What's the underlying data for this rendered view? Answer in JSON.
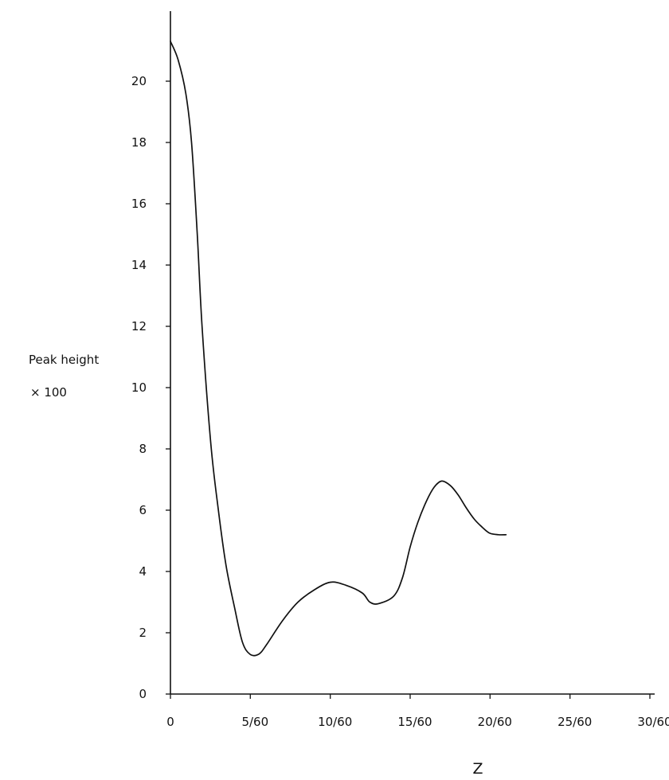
{
  "chart_data": {
    "type": "line",
    "title": "",
    "xlabel": "Z",
    "ylabel": "Peak height",
    "ylabel_multiplier": "× 100",
    "xlim": [
      0,
      0.5
    ],
    "ylim": [
      0,
      22
    ],
    "grid": false,
    "x_ticks": [
      {
        "value": 0,
        "label": "0"
      },
      {
        "value": 0.0833,
        "label": "5/60"
      },
      {
        "value": 0.1667,
        "label": "10/60"
      },
      {
        "value": 0.25,
        "label": "15/60"
      },
      {
        "value": 0.3333,
        "label": "20/60"
      },
      {
        "value": 0.4167,
        "label": "25/60"
      },
      {
        "value": 0.5,
        "label": "30/60"
      }
    ],
    "y_ticks": [
      {
        "value": 0,
        "label": "0"
      },
      {
        "value": 2,
        "label": "2"
      },
      {
        "value": 4,
        "label": "4"
      },
      {
        "value": 6,
        "label": "6"
      },
      {
        "value": 8,
        "label": "8"
      },
      {
        "value": 10,
        "label": "10"
      },
      {
        "value": 12,
        "label": "12"
      },
      {
        "value": 14,
        "label": "14"
      },
      {
        "value": 16,
        "label": "16"
      },
      {
        "value": 18,
        "label": "18"
      },
      {
        "value": 20,
        "label": "20"
      }
    ],
    "series": [
      {
        "color": "#111111",
        "points": [
          [
            0.0,
            21.3
          ],
          [
            0.008,
            20.7
          ],
          [
            0.016,
            19.6
          ],
          [
            0.022,
            18.0
          ],
          [
            0.028,
            15.0
          ],
          [
            0.033,
            12.0
          ],
          [
            0.042,
            8.2
          ],
          [
            0.05,
            6.0
          ],
          [
            0.058,
            4.2
          ],
          [
            0.067,
            2.8
          ],
          [
            0.075,
            1.7
          ],
          [
            0.083,
            1.3
          ],
          [
            0.092,
            1.3
          ],
          [
            0.1,
            1.6
          ],
          [
            0.117,
            2.4
          ],
          [
            0.133,
            3.0
          ],
          [
            0.15,
            3.4
          ],
          [
            0.167,
            3.65
          ],
          [
            0.183,
            3.55
          ],
          [
            0.2,
            3.3
          ],
          [
            0.208,
            3.0
          ],
          [
            0.217,
            2.95
          ],
          [
            0.233,
            3.2
          ],
          [
            0.242,
            3.8
          ],
          [
            0.25,
            4.8
          ],
          [
            0.258,
            5.6
          ],
          [
            0.267,
            6.3
          ],
          [
            0.275,
            6.75
          ],
          [
            0.283,
            6.95
          ],
          [
            0.292,
            6.8
          ],
          [
            0.3,
            6.5
          ],
          [
            0.308,
            6.1
          ],
          [
            0.317,
            5.7
          ],
          [
            0.325,
            5.45
          ],
          [
            0.333,
            5.25
          ],
          [
            0.342,
            5.2
          ],
          [
            0.35,
            5.2
          ]
        ]
      }
    ]
  }
}
